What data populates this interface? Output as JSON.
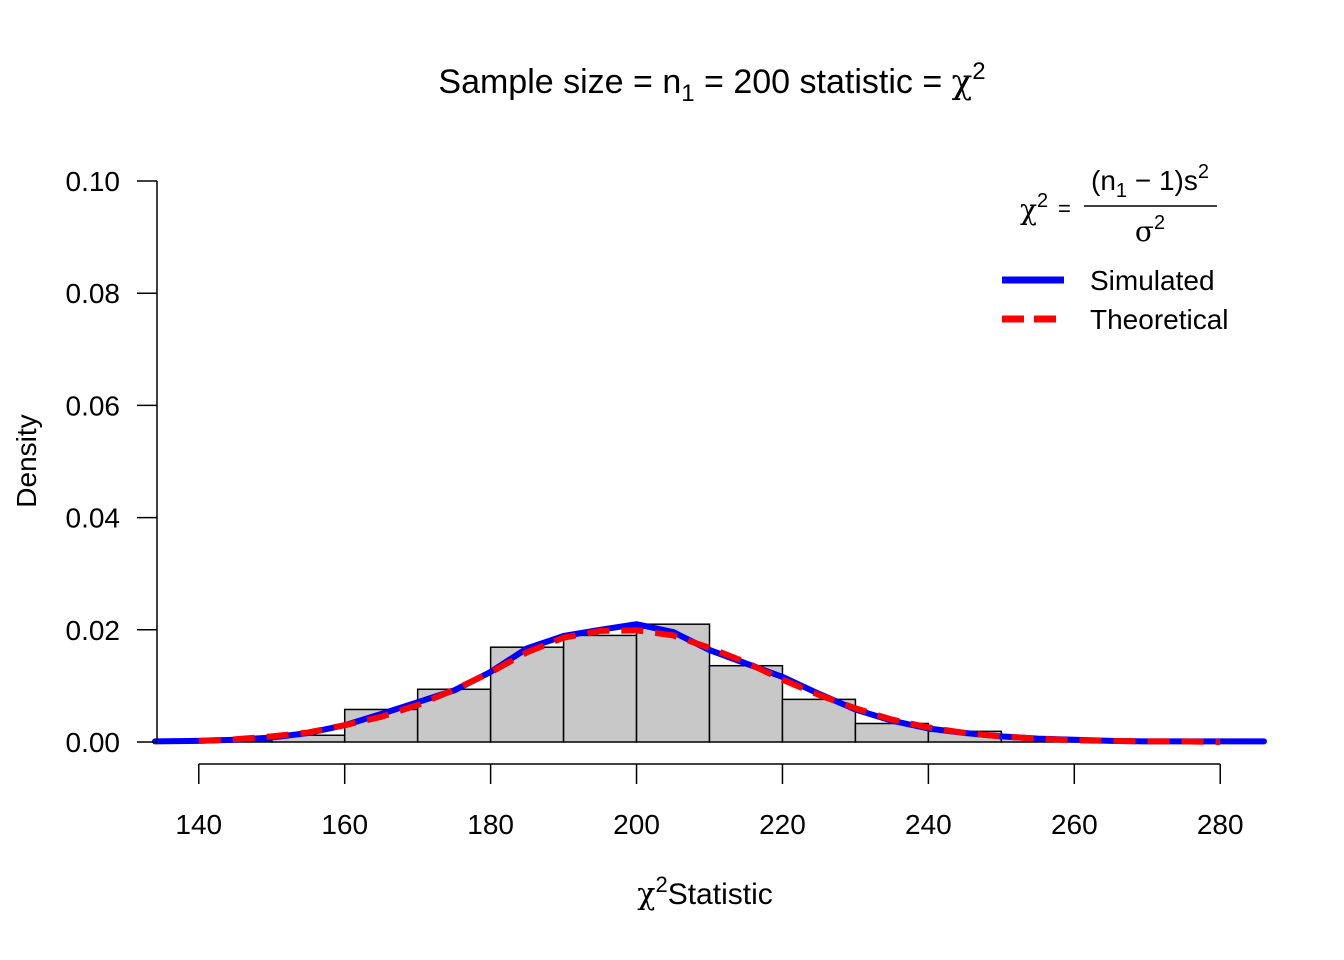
{
  "chart_data": {
    "type": "bar",
    "title": {
      "prefix": "Sample size = n",
      "sub": "1",
      "middle": " = 200 statistic = ",
      "chi": "χ",
      "sup": "2"
    },
    "xlabel": {
      "chi": "χ",
      "sup": "2",
      "text": "Statistic"
    },
    "ylabel": "Density",
    "xlim": [
      134,
      286
    ],
    "ylim": [
      0,
      0.1
    ],
    "x_ticks": [
      140,
      160,
      180,
      200,
      220,
      240,
      260,
      280
    ],
    "x_tick_labels": [
      "140",
      "160",
      "180",
      "200",
      "220",
      "240",
      "260",
      "280"
    ],
    "y_ticks": [
      0,
      0.02,
      0.04,
      0.06,
      0.08,
      0.1
    ],
    "y_tick_labels": [
      "0.00",
      "0.02",
      "0.04",
      "0.06",
      "0.08",
      "0.10"
    ],
    "histogram": {
      "bin_edges": [
        140,
        150,
        160,
        170,
        180,
        190,
        200,
        210,
        220,
        230,
        240,
        250,
        260,
        270,
        280
      ],
      "density": [
        0.0002,
        0.0012,
        0.0058,
        0.0094,
        0.0169,
        0.019,
        0.021,
        0.0136,
        0.0076,
        0.0033,
        0.0019,
        0.0006,
        0.0002,
        0.0001
      ],
      "fill": "#c8c8c8",
      "stroke": "#000000"
    },
    "series": [
      {
        "name": "Simulated",
        "color": "#0000ff",
        "style": "solid",
        "x": [
          134,
          140,
          145,
          150,
          155,
          160,
          165,
          170,
          175,
          180,
          185,
          190,
          195,
          200,
          205,
          210,
          215,
          220,
          225,
          230,
          235,
          240,
          245,
          250,
          255,
          260,
          265,
          270,
          275,
          280,
          286
        ],
        "y": [
          0.0001,
          0.0002,
          0.0004,
          0.0008,
          0.0016,
          0.003,
          0.005,
          0.0071,
          0.0092,
          0.0125,
          0.0167,
          0.0189,
          0.02,
          0.021,
          0.0196,
          0.0164,
          0.014,
          0.0116,
          0.0086,
          0.0058,
          0.0038,
          0.0024,
          0.0016,
          0.001,
          0.0006,
          0.0004,
          0.0002,
          0.0001,
          0.0001,
          0.0001,
          0.0001
        ]
      },
      {
        "name": "Theoretical",
        "color": "#ff0000",
        "style": "dashed",
        "x": [
          140,
          145,
          150,
          155,
          160,
          165,
          170,
          175,
          180,
          185,
          190,
          195,
          200,
          205,
          210,
          215,
          220,
          225,
          230,
          235,
          240,
          245,
          250,
          255,
          260,
          265,
          270,
          275,
          280
        ],
        "y": [
          0.0002,
          0.0005,
          0.001,
          0.0017,
          0.003,
          0.0045,
          0.0066,
          0.0093,
          0.0124,
          0.016,
          0.0186,
          0.0198,
          0.0199,
          0.019,
          0.0168,
          0.0142,
          0.0111,
          0.0084,
          0.006,
          0.004,
          0.0026,
          0.0016,
          0.001,
          0.0006,
          0.0003,
          0.0002,
          0.0001,
          0.0001,
          0.0
        ]
      }
    ],
    "legend": {
      "position": "top-right",
      "formula": {
        "lhs_chi": "χ",
        "lhs_sup": "2",
        "eq": "=",
        "num_open": "(n",
        "num_sub": "1",
        "num_rest": " − 1)s",
        "num_sup": "2",
        "den": "σ",
        "den_sup": "2"
      }
    }
  }
}
